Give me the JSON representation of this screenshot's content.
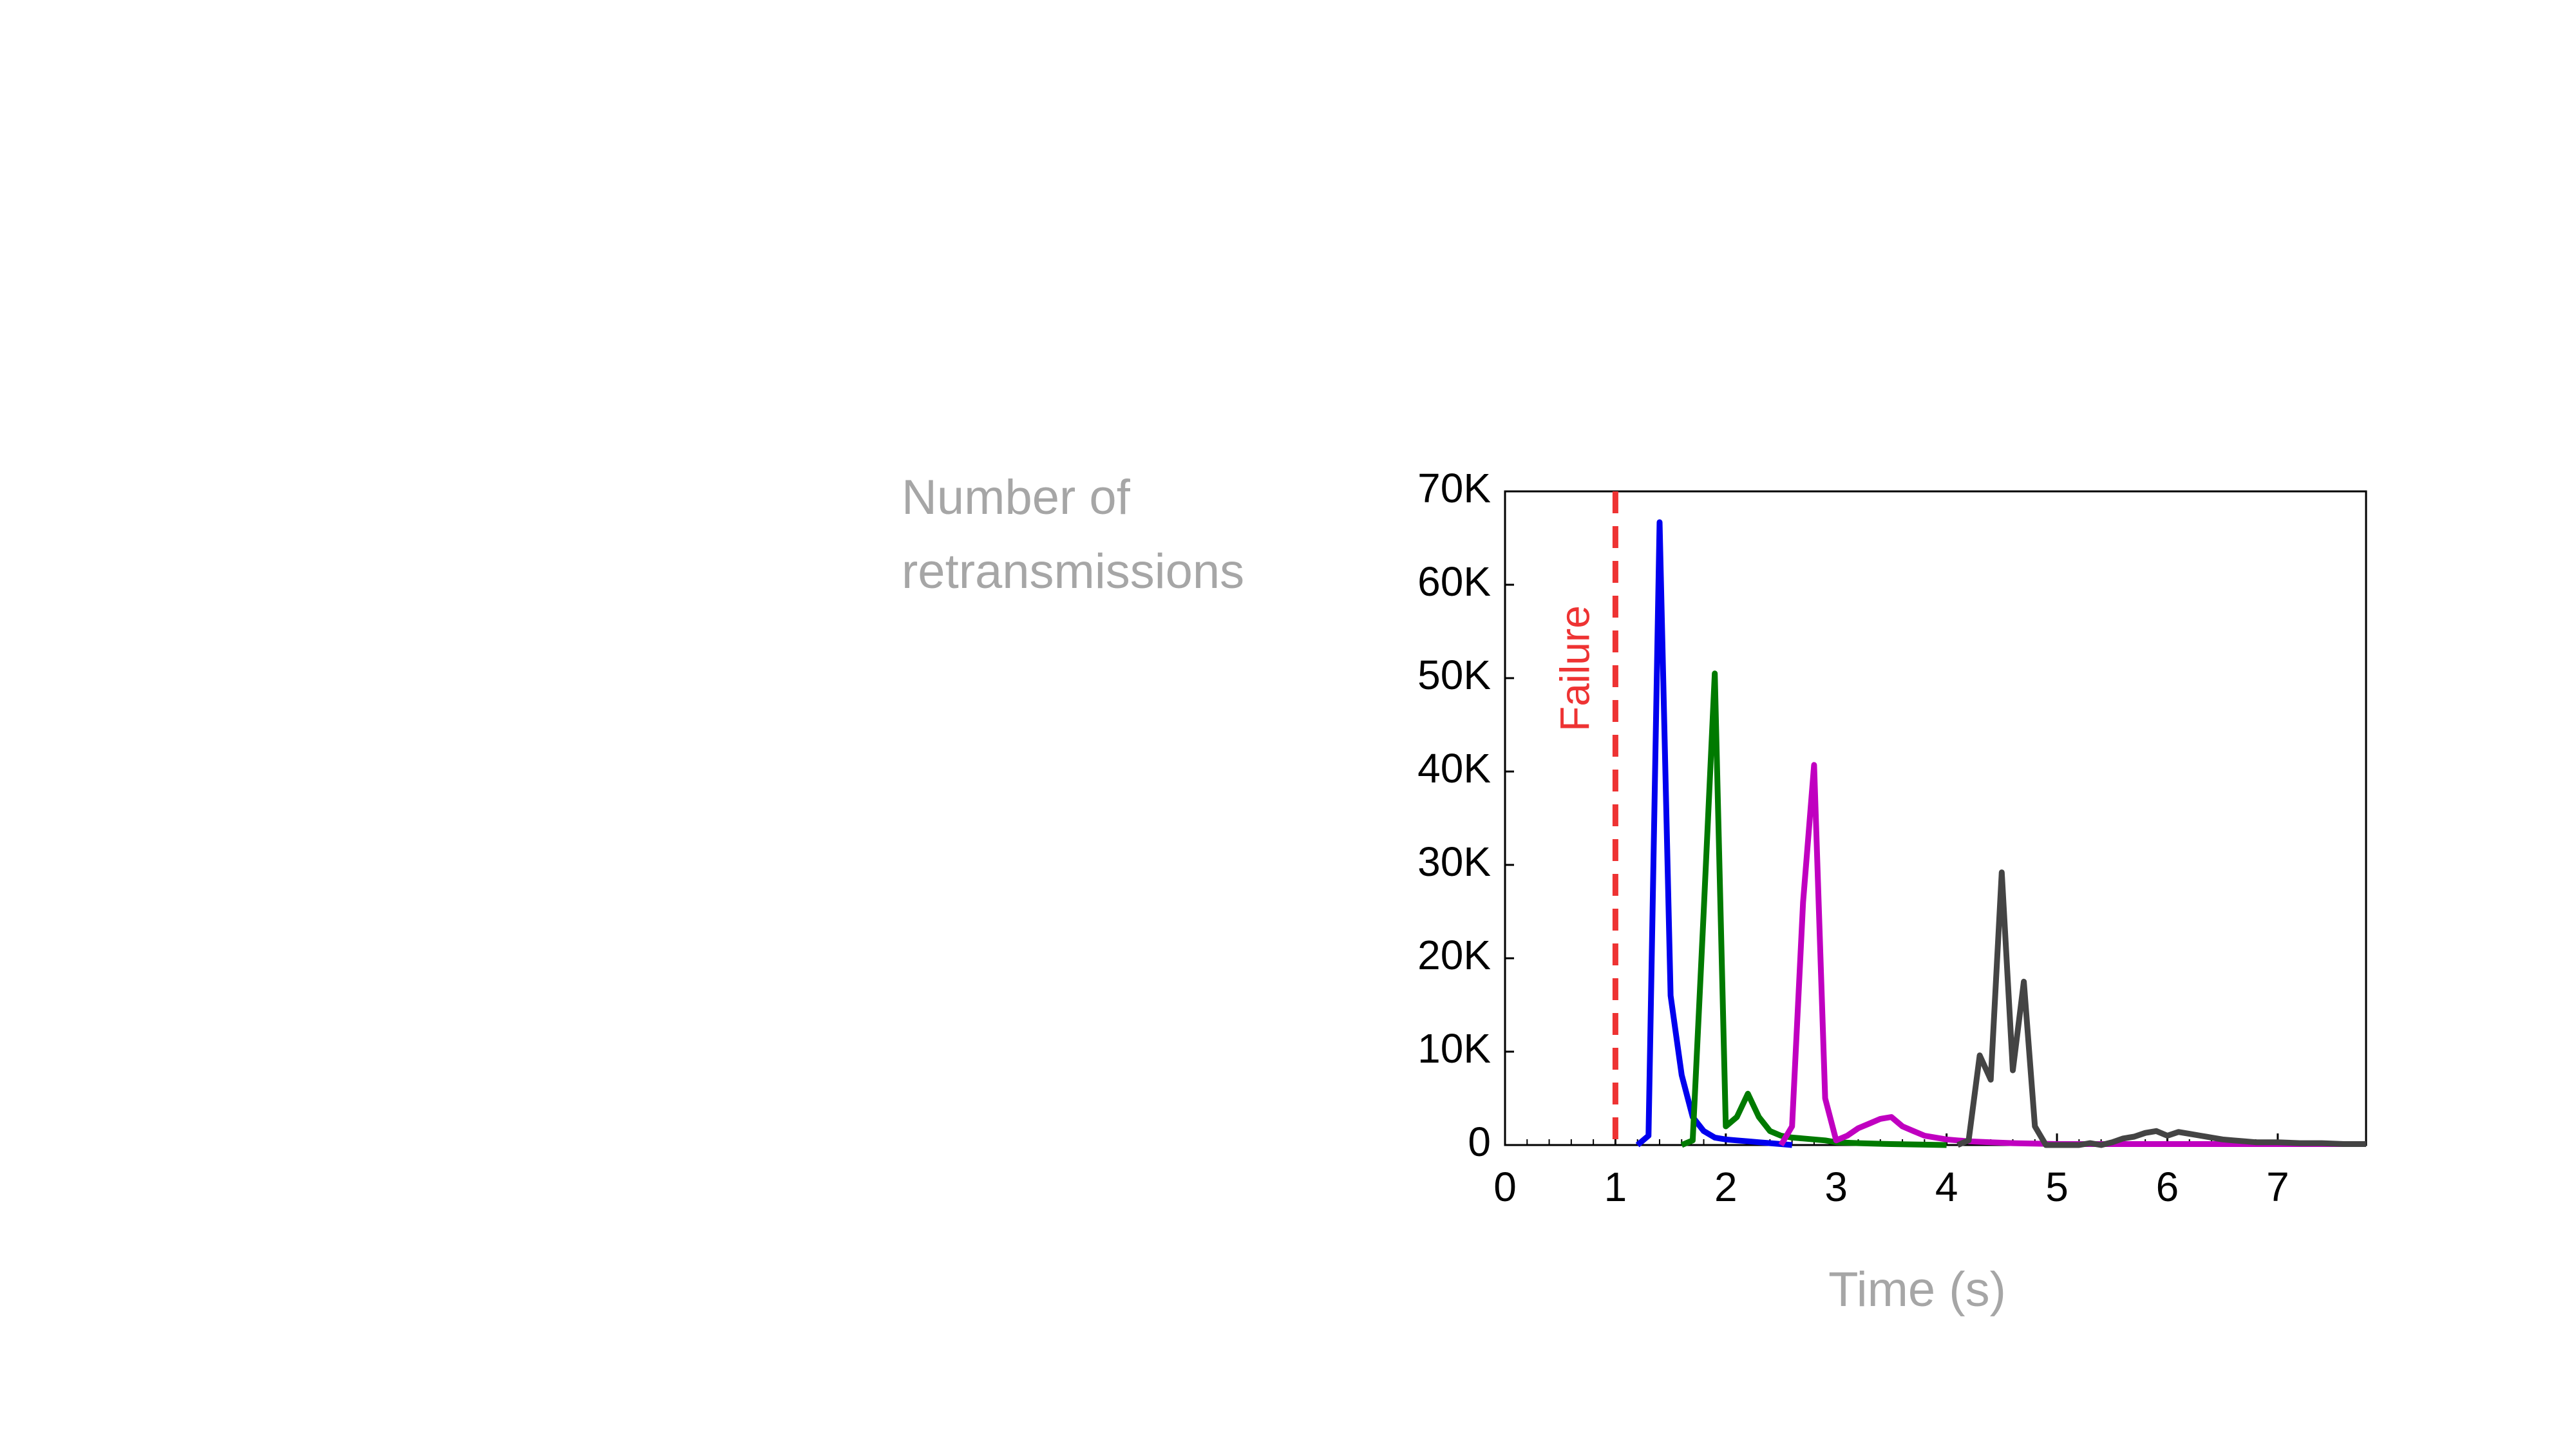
{
  "chart_data": {
    "type": "line",
    "xlabel": "Time (s)",
    "ylabel": "Number of retransmissions",
    "xlim": [
      0,
      7.8
    ],
    "ylim": [
      0,
      70000
    ],
    "xticks": [
      0,
      1,
      2,
      3,
      4,
      5,
      6,
      7
    ],
    "yticks": [
      0,
      {
        "value": 10000,
        "label": "10K"
      },
      {
        "value": 20000,
        "label": "20K"
      },
      {
        "value": 30000,
        "label": "30K"
      },
      {
        "value": 40000,
        "label": "40K"
      },
      {
        "value": 50000,
        "label": "50K"
      },
      {
        "value": 60000,
        "label": "60K"
      },
      {
        "value": 70000,
        "label": "70K"
      }
    ],
    "failure_line": {
      "x": 1,
      "label": "Failure",
      "color": "#ee3333"
    },
    "series": [
      {
        "color": "#0000ee",
        "x": [
          1.2,
          1.3,
          1.4,
          1.5,
          1.6,
          1.7,
          1.8,
          1.9,
          2.0,
          2.1,
          2.2,
          2.3,
          2.4,
          2.5,
          2.6
        ],
        "values": [
          0,
          1000,
          66700,
          16000,
          7500,
          3000,
          1500,
          800,
          600,
          500,
          400,
          300,
          200,
          100,
          0
        ]
      },
      {
        "color": "#007a00",
        "x": [
          1.6,
          1.7,
          1.8,
          1.9,
          2.0,
          2.1,
          2.2,
          2.3,
          2.4,
          2.5,
          2.6,
          2.7,
          2.8,
          2.9,
          3.0,
          3.2,
          3.5,
          4.0
        ],
        "values": [
          0,
          500,
          25000,
          50500,
          2000,
          3000,
          5500,
          3000,
          1500,
          1000,
          800,
          700,
          600,
          500,
          300,
          200,
          100,
          0
        ]
      },
      {
        "color": "#c000c0",
        "x": [
          2.5,
          2.6,
          2.7,
          2.8,
          2.9,
          3.0,
          3.1,
          3.2,
          3.3,
          3.4,
          3.5,
          3.6,
          3.7,
          3.8,
          3.9,
          4.0,
          4.1,
          4.2,
          4.4,
          4.6,
          5.0,
          6.0,
          7.0,
          7.8
        ],
        "values": [
          0,
          2000,
          26000,
          40700,
          5000,
          500,
          1000,
          1800,
          2300,
          2800,
          3000,
          2000,
          1500,
          1000,
          800,
          600,
          500,
          400,
          300,
          200,
          100,
          100,
          100,
          100
        ]
      },
      {
        "color": "#444444",
        "x": [
          4.1,
          4.2,
          4.3,
          4.4,
          4.5,
          4.6,
          4.7,
          4.8,
          4.9,
          5.0,
          5.2,
          5.3,
          5.4,
          5.5,
          5.6,
          5.7,
          5.8,
          5.9,
          6.0,
          6.1,
          6.2,
          6.3,
          6.4,
          6.5,
          6.6,
          6.7,
          6.8,
          7.0,
          7.2,
          7.4,
          7.6,
          7.8
        ],
        "values": [
          0,
          500,
          9600,
          7000,
          29200,
          8000,
          17500,
          2000,
          0,
          0,
          0,
          200,
          0,
          300,
          700,
          900,
          1300,
          1500,
          1000,
          1400,
          1200,
          1000,
          800,
          600,
          500,
          400,
          300,
          300,
          200,
          200,
          100,
          100
        ]
      }
    ]
  }
}
